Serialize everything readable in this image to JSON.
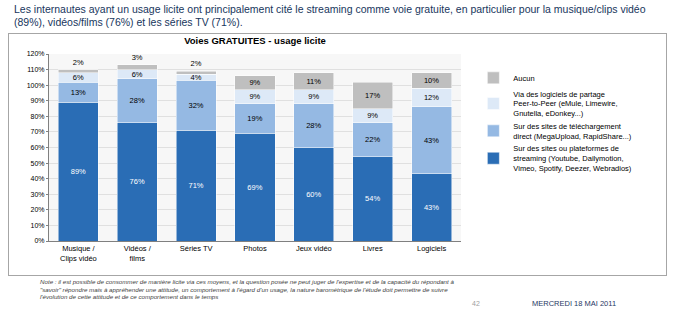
{
  "header": {
    "text": "Les internautes ayant un usage licite ont principalement cité le streaming comme voie gratuite, en particulier pour la musique/clips vidéo (89%), vidéos/films (76%) et les séries TV (71%)."
  },
  "chart_data": {
    "type": "bar",
    "stacked": true,
    "title": "Voies GRATUITES - usage licite",
    "categories": [
      "Musique / Clips vidéo",
      "Vidéos / films",
      "Séries TV",
      "Photos",
      "Jeux vidéo",
      "Livres",
      "Logiciels"
    ],
    "series": [
      {
        "name": "Sur des sites ou plateformes de streaming (Youtube, Dailymotion, Vimeo, Spotify, Deezer, Webradios)",
        "color": "#2a6db5",
        "values": [
          89,
          76,
          71,
          69,
          60,
          54,
          43
        ],
        "value_labels": [
          "89%",
          "76%",
          "71%",
          "69%",
          "60%",
          "54%",
          "43%"
        ]
      },
      {
        "name": "Sur des sites de téléchargement direct (MegaUpload, RapidShare...)",
        "color": "#95b9e3",
        "values": [
          13,
          28,
          32,
          19,
          28,
          22,
          43
        ],
        "value_labels": [
          "13%",
          "28%",
          "32%",
          "19%",
          "28%",
          "22%",
          "43%"
        ]
      },
      {
        "name": "Via des logiciels de partage Peer-to-Peer (eMule, Limewire, Gnutella, eDonkey...)",
        "color": "#dde9f7",
        "values": [
          6,
          6,
          4,
          9,
          9,
          9,
          12
        ],
        "value_labels": [
          "6%",
          "6%",
          "4%",
          "9%",
          "9%",
          "9%",
          "12%"
        ]
      },
      {
        "name": "Aucun",
        "color": "#bfbfbf",
        "values": [
          2,
          3,
          2,
          9,
          11,
          17,
          10
        ],
        "value_labels": [
          "2%",
          "3%",
          "2%",
          "9%",
          "11%",
          "17%",
          "10%"
        ]
      }
    ],
    "ylim": [
      0,
      120
    ],
    "yticks": [
      {
        "value": 0,
        "label": "0%"
      },
      {
        "value": 10,
        "label": "10%"
      },
      {
        "value": 20,
        "label": "20%"
      },
      {
        "value": 30,
        "label": "30%"
      },
      {
        "value": 40,
        "label": "40%"
      },
      {
        "value": 50,
        "label": "50%"
      },
      {
        "value": 60,
        "label": "60%"
      },
      {
        "value": 70,
        "label": "70%"
      },
      {
        "value": 80,
        "label": "80%"
      },
      {
        "value": 90,
        "label": "90%"
      },
      {
        "value": 100,
        "label": "100%"
      },
      {
        "value": 110,
        "label": "110%"
      },
      {
        "value": 120,
        "label": "120%"
      }
    ],
    "grid": true,
    "legend": "right",
    "data_labels": true
  },
  "footer": {
    "note": "Note : il est possible de consommer de manière licite via ces moyens, et la question posée ne peut juger de l'expertise et de la capacité du répondant à \"savoir\" répondre mais à appréhender une attitude, un comportement à l'égard d'un usage, la nature barométrique de l'étude doit permettre de suivre l'évolution de cette attitude et de ce comportement dans le temps",
    "page": 42,
    "date": "MERCREDI 18 MAI 2011"
  }
}
